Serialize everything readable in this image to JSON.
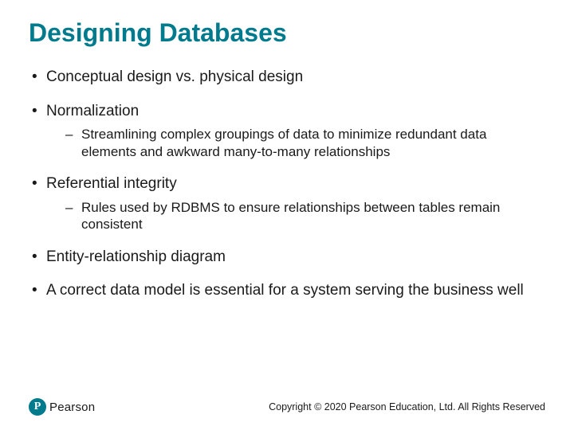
{
  "colors": {
    "title": "#007a8d",
    "body_text": "#1a1a1a",
    "background": "#ffffff",
    "logo_bg": "#007a8d",
    "logo_fg": "#ffffff"
  },
  "typography": {
    "title_fontsize_pt": 24,
    "body_fontsize_pt": 14,
    "sub_fontsize_pt": 13,
    "footer_fontsize_pt": 9,
    "font_family": "Arial"
  },
  "title": "Designing Databases",
  "bullets": [
    {
      "text": "Conceptual design vs. physical design",
      "sub": []
    },
    {
      "text": "Normalization",
      "sub": [
        "Streamlining complex groupings of data to minimize redundant data elements and awkward many-to-many relationships"
      ]
    },
    {
      "text": "Referential integrity",
      "sub": [
        "Rules used by RDBMS to ensure relationships between tables remain consistent"
      ]
    },
    {
      "text": "Entity-relationship diagram",
      "sub": []
    },
    {
      "text": "A correct data model is essential for a system serving the business well",
      "sub": []
    }
  ],
  "footer": {
    "logo_letter": "P",
    "logo_word": "Pearson",
    "copyright": "Copyright © 2020 Pearson Education, Ltd. All Rights Reserved"
  }
}
